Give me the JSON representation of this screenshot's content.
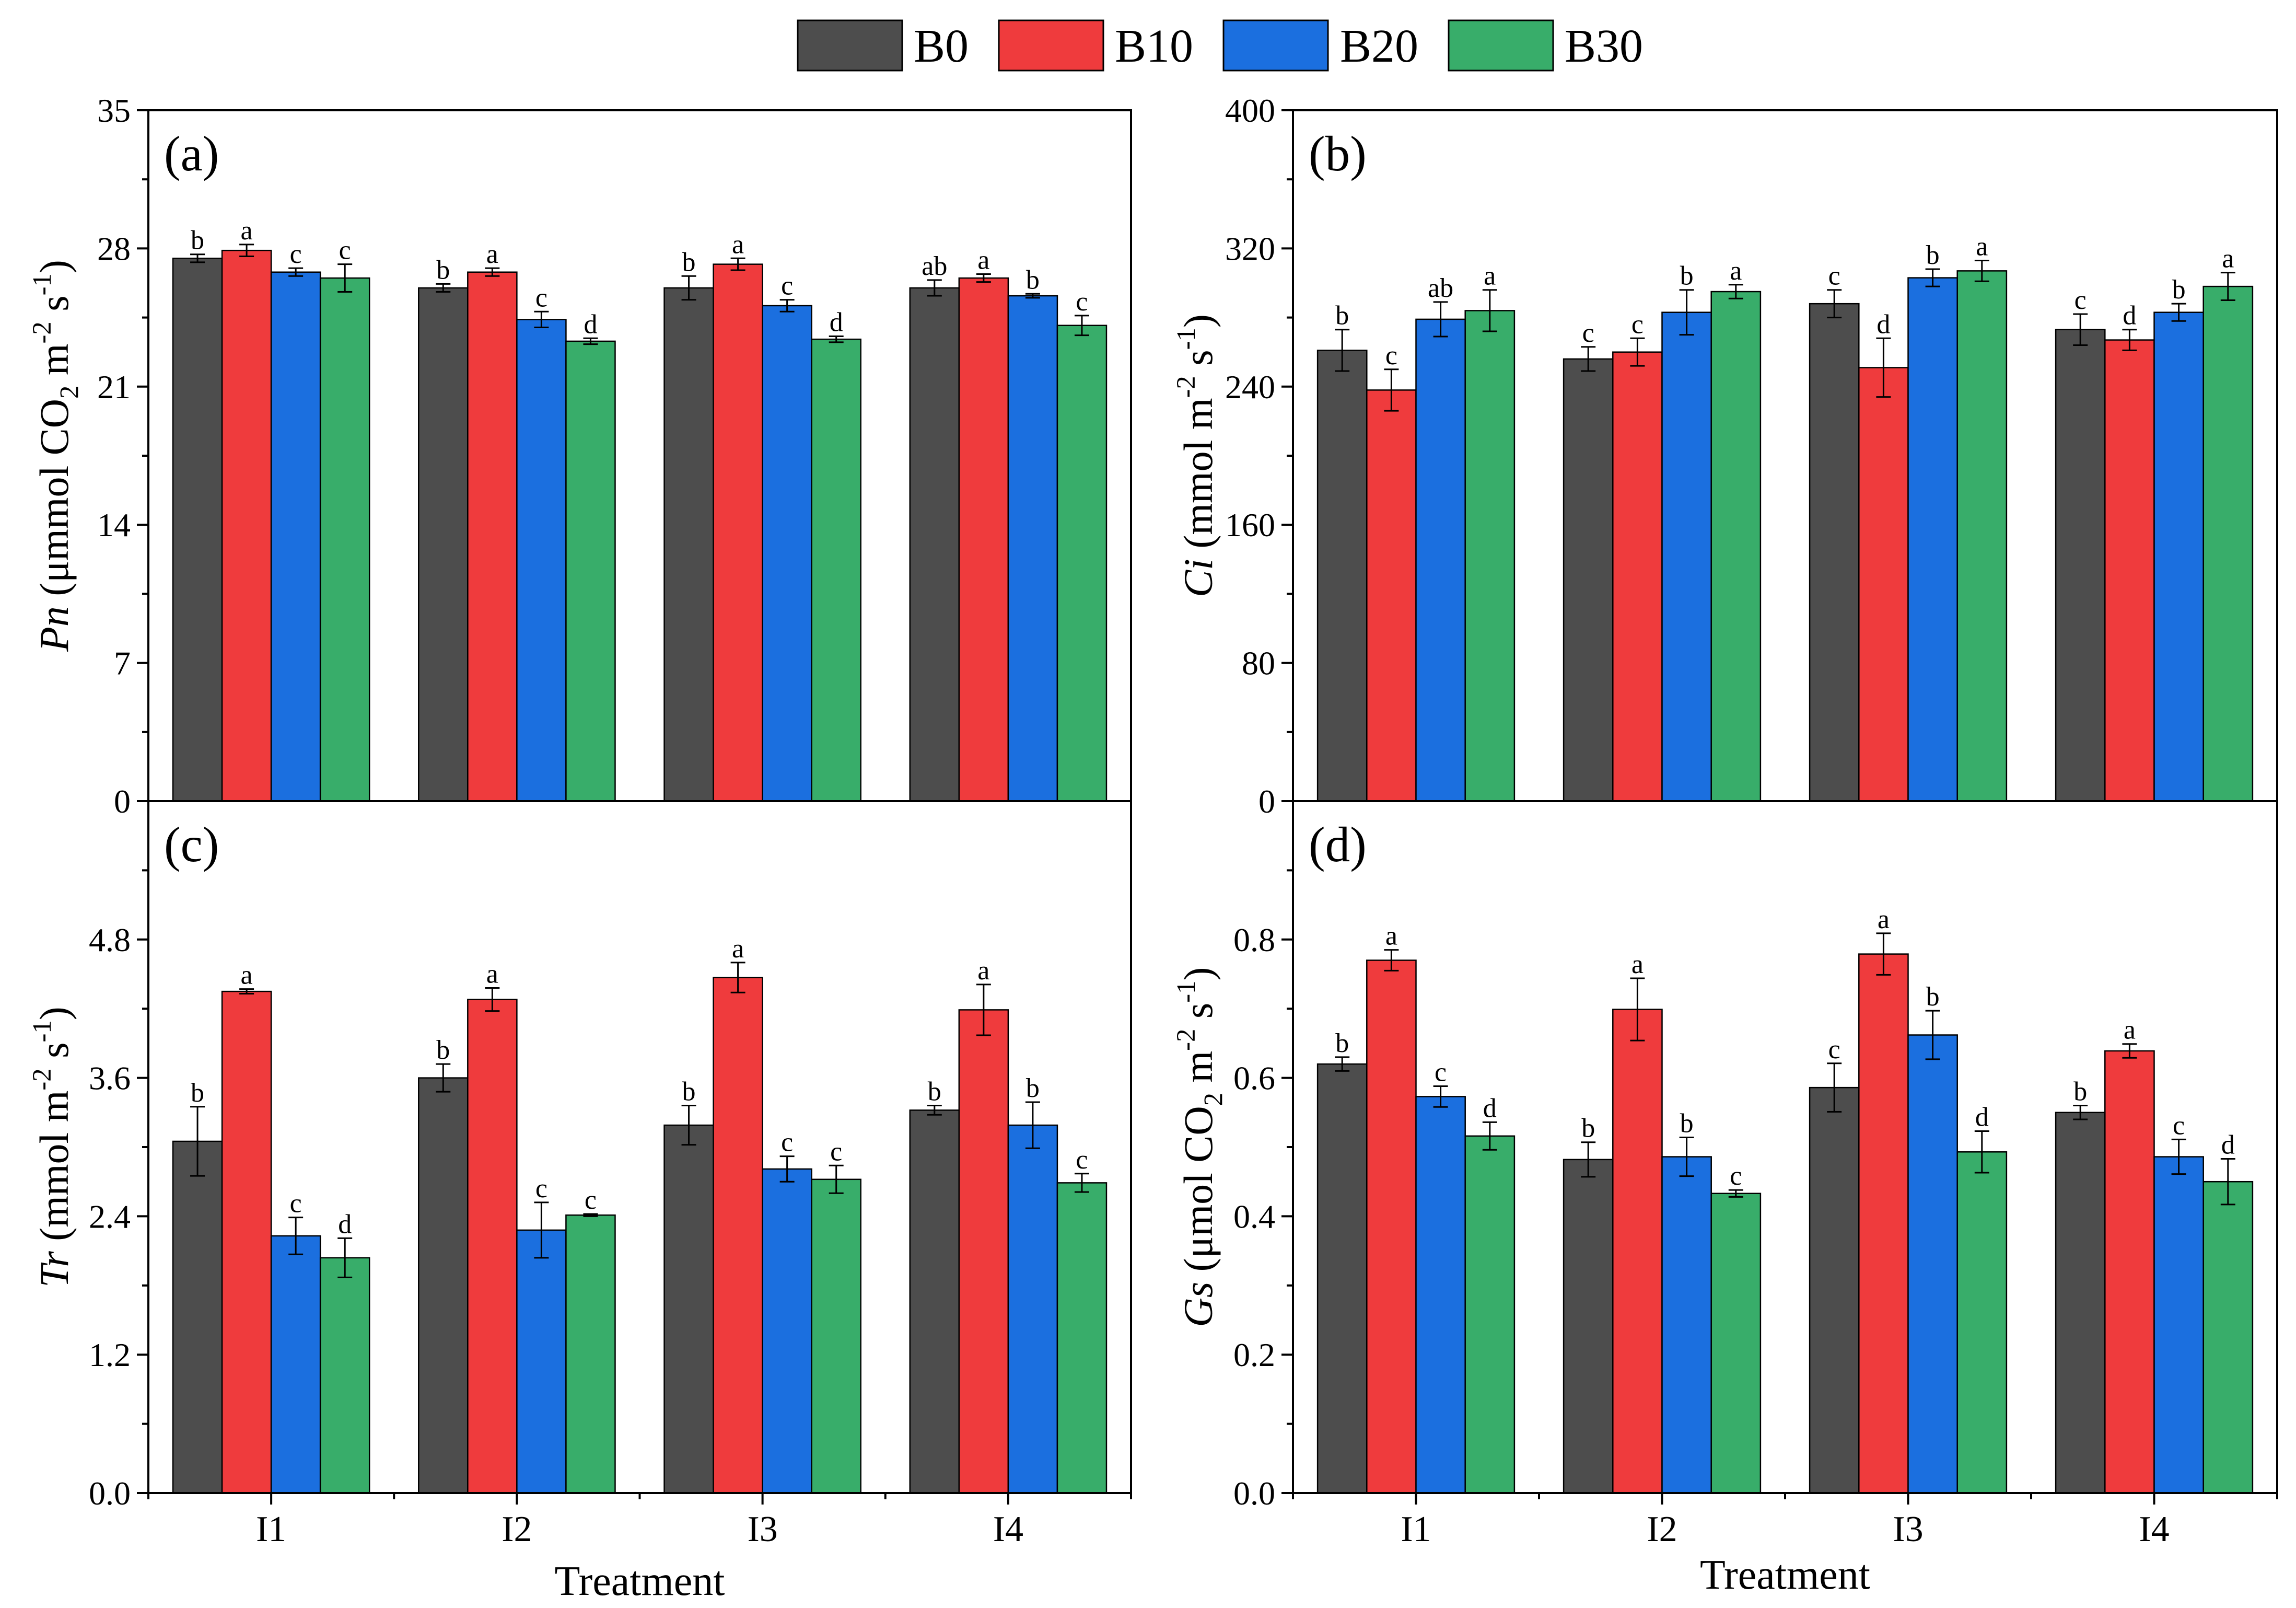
{
  "chart_data": {
    "type": "bar",
    "grid": false,
    "legend": [
      {
        "name": "B0",
        "color": "#4d4d4d"
      },
      {
        "name": "B10",
        "color": "#ef3b3d"
      },
      {
        "name": "B20",
        "color": "#1b6fdf"
      },
      {
        "name": "B30",
        "color": "#38ad6a"
      }
    ],
    "categories": [
      "I1",
      "I2",
      "I3",
      "I4"
    ],
    "xlabel": "Treatment",
    "panels": [
      {
        "label": "(a)",
        "ylabel": [
          {
            "italic": "Pn"
          },
          {
            "text": " (μmmol CO"
          },
          {
            "sub": "2"
          },
          {
            "text": " m"
          },
          {
            "sup": "-2"
          },
          {
            "text": " s"
          },
          {
            "sup": "-1"
          },
          {
            "text": ")"
          }
        ],
        "ylim": [
          0,
          35
        ],
        "yticks": [
          0,
          7,
          14,
          21,
          28,
          35
        ],
        "ytick_labels": [
          "0",
          "7",
          "14",
          "21",
          "28",
          "35"
        ],
        "series": [
          {
            "values": [
              27.5,
              26.0,
              26.0,
              26.0
            ],
            "errors": [
              0.2,
              0.2,
              0.6,
              0.4
            ],
            "letters": [
              "b",
              "b",
              "b",
              "ab"
            ]
          },
          {
            "values": [
              27.9,
              26.8,
              27.2,
              26.5
            ],
            "errors": [
              0.3,
              0.2,
              0.3,
              0.2
            ],
            "letters": [
              "a",
              "a",
              "a",
              "a"
            ]
          },
          {
            "values": [
              26.8,
              24.4,
              25.1,
              25.6
            ],
            "errors": [
              0.2,
              0.4,
              0.3,
              0.1
            ],
            "letters": [
              "c",
              "c",
              "c",
              "b"
            ]
          },
          {
            "values": [
              26.5,
              23.3,
              23.4,
              24.1
            ],
            "errors": [
              0.7,
              0.15,
              0.15,
              0.5
            ],
            "letters": [
              "c",
              "d",
              "d",
              "c"
            ]
          }
        ]
      },
      {
        "label": "(b)",
        "ylabel": [
          {
            "italic": "Ci"
          },
          {
            "text": " (mmol m"
          },
          {
            "sup": "-2"
          },
          {
            "text": " s"
          },
          {
            "sup": "-1"
          },
          {
            "text": ")"
          }
        ],
        "ylim": [
          0,
          400
        ],
        "yticks": [
          0,
          80,
          160,
          240,
          320,
          400
        ],
        "ytick_labels": [
          "0",
          "80",
          "160",
          "240",
          "320",
          "400"
        ],
        "series": [
          {
            "values": [
              261,
              256,
              288,
              273
            ],
            "errors": [
              12,
              7,
              8,
              9
            ],
            "letters": [
              "b",
              "c",
              "c",
              "c"
            ]
          },
          {
            "values": [
              238,
              260,
              251,
              267
            ],
            "errors": [
              12,
              8,
              17,
              6
            ],
            "letters": [
              "c",
              "c",
              "d",
              "d"
            ]
          },
          {
            "values": [
              279,
              283,
              303,
              283
            ],
            "errors": [
              10,
              13,
              5,
              5
            ],
            "letters": [
              "ab",
              "b",
              "b",
              "b"
            ]
          },
          {
            "values": [
              284,
              295,
              307,
              298
            ],
            "errors": [
              12,
              4,
              6,
              8
            ],
            "letters": [
              "a",
              "a",
              "a",
              "a"
            ]
          }
        ]
      },
      {
        "label": "(c)",
        "ylabel": [
          {
            "italic": "Tr"
          },
          {
            "text": " (mmol m"
          },
          {
            "sup": "-2"
          },
          {
            "text": " s"
          },
          {
            "sup": "-1"
          },
          {
            "text": ")"
          }
        ],
        "ylim": [
          0,
          6.0
        ],
        "yticks": [
          0,
          1.2,
          2.4,
          3.6,
          4.8
        ],
        "ytick_labels": [
          "0.0",
          "1.2",
          "2.4",
          "3.6",
          "4.8"
        ],
        "series": [
          {
            "values": [
              3.05,
              3.6,
              3.19,
              3.32
            ],
            "errors": [
              0.3,
              0.12,
              0.17,
              0.04
            ],
            "letters": [
              "b",
              "b",
              "b",
              "b"
            ]
          },
          {
            "values": [
              4.35,
              4.28,
              4.47,
              4.19
            ],
            "errors": [
              0.02,
              0.1,
              0.13,
              0.22
            ],
            "letters": [
              "a",
              "a",
              "a",
              "a"
            ]
          },
          {
            "values": [
              2.23,
              2.28,
              2.81,
              3.19
            ],
            "errors": [
              0.16,
              0.24,
              0.11,
              0.2
            ],
            "letters": [
              "c",
              "c",
              "c",
              "b"
            ]
          },
          {
            "values": [
              2.04,
              2.41,
              2.72,
              2.69
            ],
            "errors": [
              0.17,
              0.01,
              0.12,
              0.08
            ],
            "letters": [
              "d",
              "c",
              "c",
              "c"
            ]
          }
        ]
      },
      {
        "label": "(d)",
        "ylabel": [
          {
            "italic": "Gs"
          },
          {
            "text": " (μmol CO"
          },
          {
            "sub": "2"
          },
          {
            "text": " m"
          },
          {
            "sup": "-2"
          },
          {
            "text": " s"
          },
          {
            "sup": "-1"
          },
          {
            "text": ")"
          }
        ],
        "ylim": [
          0,
          1.0
        ],
        "yticks": [
          0,
          0.2,
          0.4,
          0.6,
          0.8
        ],
        "ytick_labels": [
          "0.0",
          "0.2",
          "0.4",
          "0.6",
          "0.8"
        ],
        "series": [
          {
            "values": [
              0.62,
              0.482,
              0.586,
              0.55
            ],
            "errors": [
              0.01,
              0.025,
              0.035,
              0.01
            ],
            "letters": [
              "b",
              "b",
              "c",
              "b"
            ]
          },
          {
            "values": [
              0.77,
              0.699,
              0.779,
              0.639
            ],
            "errors": [
              0.015,
              0.045,
              0.03,
              0.01
            ],
            "letters": [
              "a",
              "a",
              "a",
              "a"
            ]
          },
          {
            "values": [
              0.573,
              0.486,
              0.662,
              0.486
            ],
            "errors": [
              0.015,
              0.028,
              0.035,
              0.025
            ],
            "letters": [
              "c",
              "b",
              "b",
              "c"
            ]
          },
          {
            "values": [
              0.516,
              0.433,
              0.493,
              0.45
            ],
            "errors": [
              0.02,
              0.005,
              0.03,
              0.033
            ],
            "letters": [
              "d",
              "c",
              "d",
              "d"
            ]
          }
        ]
      }
    ]
  }
}
